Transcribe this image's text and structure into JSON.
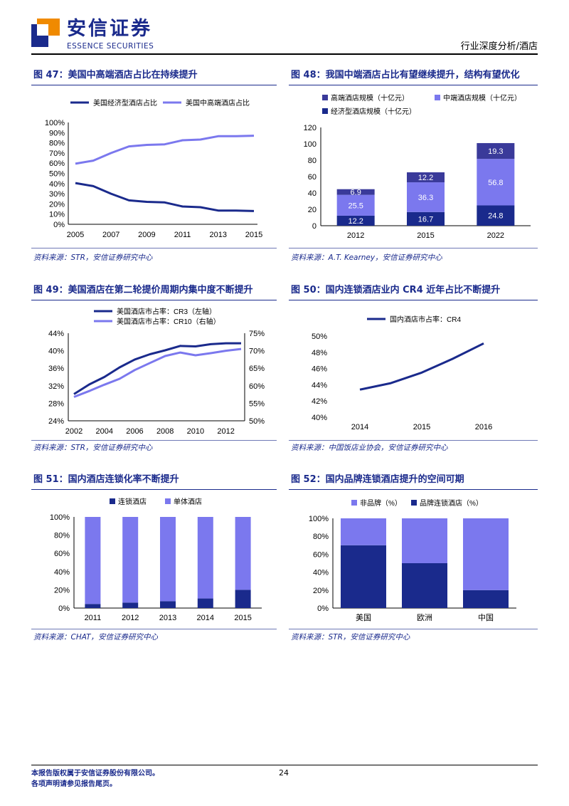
{
  "header": {
    "logo_cn": "安信证券",
    "logo_en": "ESSENCE SECURITIES",
    "right_text": "行业深度分析/酒店"
  },
  "colors": {
    "navy": "#1a2a8c",
    "mid": "#7b78ee",
    "dark": "#3a3a9a"
  },
  "figures": [
    {
      "id": "fig47",
      "title": "图 47：美国中高端酒店占比在持续提升",
      "source": "资料来源：STR，安信证券研究中心",
      "chart_data": {
        "type": "line",
        "x": [
          2005,
          2006,
          2007,
          2008,
          2009,
          2010,
          2011,
          2012,
          2013,
          2014,
          2015
        ],
        "xticks": [
          "2005",
          "2007",
          "2009",
          "2011",
          "2013",
          "2015"
        ],
        "yticks": [
          "0%",
          "10%",
          "20%",
          "30%",
          "40%",
          "50%",
          "60%",
          "70%",
          "80%",
          "90%",
          "100%"
        ],
        "ylim": [
          0,
          100
        ],
        "series": [
          {
            "name": "美国经济型酒店占比",
            "color": "#1a2a8c",
            "values": [
              40.5,
              37.5,
              30,
              23.5,
              22,
              21.5,
              17.5,
              16.8,
              13.5,
              13.5,
              13
            ]
          },
          {
            "name": "美国中高端酒店占比",
            "color": "#7b78ee",
            "values": [
              59.5,
              62.5,
              70,
              76.5,
              78,
              78.5,
              82.5,
              83.2,
              86.5,
              86.5,
              87
            ]
          }
        ]
      }
    },
    {
      "id": "fig48",
      "title": "图 48：我国中端酒店占比有望继续提升，结构有望优化",
      "source": "资料来源：A.T. Kearney，安信证券研究中心",
      "chart_data": {
        "type": "bar",
        "stacked": true,
        "categories": [
          "2012",
          "2015",
          "2022"
        ],
        "yticks": [
          "0",
          "20",
          "40",
          "60",
          "80",
          "100",
          "120"
        ],
        "ylim": [
          0,
          120
        ],
        "series": [
          {
            "name": "经济型酒店规模（十亿元）",
            "color": "#1a2a8c",
            "values": [
              12.2,
              16.7,
              24.8
            ],
            "labels": [
              "12.2",
              "16.7",
              "24.8"
            ]
          },
          {
            "name": "中端酒店规模（十亿元）",
            "color": "#7b78ee",
            "values": [
              25.5,
              36.3,
              56.8
            ],
            "labels": [
              "25.5",
              "36.3",
              "56.8"
            ]
          },
          {
            "name": "高端酒店规模（十亿元）",
            "color": "#3a3a9a",
            "values": [
              6.9,
              12.2,
              19.3
            ],
            "labels": [
              "6.9",
              "12.2",
              "19.3"
            ]
          }
        ]
      }
    },
    {
      "id": "fig49",
      "title": "图 49：美国酒店在第二轮提价周期内集中度不断提升",
      "source": "资料来源：STR，安信证券研究中心",
      "chart_data": {
        "type": "line",
        "x": [
          2002,
          2003,
          2004,
          2005,
          2006,
          2007,
          2008,
          2009,
          2010,
          2011,
          2012,
          2013
        ],
        "xticks": [
          "2002",
          "2004",
          "2006",
          "2008",
          "2010",
          "2012"
        ],
        "yticks_left": [
          "24%",
          "28%",
          "32%",
          "36%",
          "40%",
          "44%"
        ],
        "ylim_left": [
          24,
          44
        ],
        "yticks_right": [
          "50%",
          "55%",
          "60%",
          "65%",
          "70%",
          "75%"
        ],
        "ylim_right": [
          50,
          75
        ],
        "series": [
          {
            "name": "美国酒店市占率：CR3（左轴）",
            "axis": "left",
            "color": "#1a2a8c",
            "values": [
              30.1,
              32.3,
              34,
              36.2,
              38,
              39.2,
              40.1,
              41.1,
              41,
              41.5,
              41.7,
              41.7
            ]
          },
          {
            "name": "美国酒店市占率：CR10（右轴）",
            "axis": "right",
            "color": "#7b78ee",
            "values": [
              56.8,
              58.5,
              60.3,
              62,
              64.5,
              66.5,
              68.5,
              69.5,
              68.7,
              69.3,
              70,
              70.5
            ]
          }
        ]
      }
    },
    {
      "id": "fig50",
      "title": "图 50：国内连锁酒店业内 CR4 近年占比不断提升",
      "source": "资料来源：中国饭店业协会，安信证券研究中心",
      "chart_data": {
        "type": "line",
        "x": [
          2014,
          2014.5,
          2015,
          2015.5,
          2016
        ],
        "xticks": [
          "2014",
          "2015",
          "2016"
        ],
        "yticks": [
          "40%",
          "42%",
          "44%",
          "46%",
          "48%",
          "50%"
        ],
        "ylim": [
          40,
          50
        ],
        "series": [
          {
            "name": "国内酒店市占率：CR4",
            "color": "#1a2a8c",
            "values": [
              43.4,
              44.2,
              45.5,
              47.2,
              49.1
            ]
          }
        ]
      }
    },
    {
      "id": "fig51",
      "title": "图 51：国内酒店连锁化率不断提升",
      "source": "资料来源：CHAT，安信证券研究中心",
      "chart_data": {
        "type": "bar",
        "stacked": true,
        "categories": [
          "2011",
          "2012",
          "2013",
          "2014",
          "2015"
        ],
        "yticks": [
          "0%",
          "20%",
          "40%",
          "60%",
          "80%",
          "100%"
        ],
        "ylim": [
          0,
          100
        ],
        "series": [
          {
            "name": "连锁酒店",
            "color": "#1a2a8c",
            "values": [
              4.5,
              6,
              7.5,
              10.5,
              20
            ]
          },
          {
            "name": "单体酒店",
            "color": "#7b78ee",
            "values": [
              95.5,
              94,
              92.5,
              89.5,
              80
            ]
          }
        ]
      }
    },
    {
      "id": "fig52",
      "title": "图 52：国内品牌连锁酒店提升的空间可期",
      "source": "资料来源：STR，安信证券研究中心",
      "chart_data": {
        "type": "bar",
        "stacked": true,
        "categories": [
          "美国",
          "欧洲",
          "中国"
        ],
        "yticks": [
          "0%",
          "20%",
          "40%",
          "60%",
          "80%",
          "100%"
        ],
        "ylim": [
          0,
          100
        ],
        "series": [
          {
            "name": "品牌连锁酒店（%）",
            "color": "#1a2a8c",
            "values": [
              70,
              50,
              20
            ]
          },
          {
            "name": "非品牌（%）",
            "color": "#7b78ee",
            "values": [
              30,
              50,
              80
            ]
          }
        ]
      }
    }
  ],
  "footer": {
    "line1": "本报告版权属于安信证券股份有限公司。",
    "line2": "各项声明请参见报告尾页。",
    "page": "24"
  }
}
